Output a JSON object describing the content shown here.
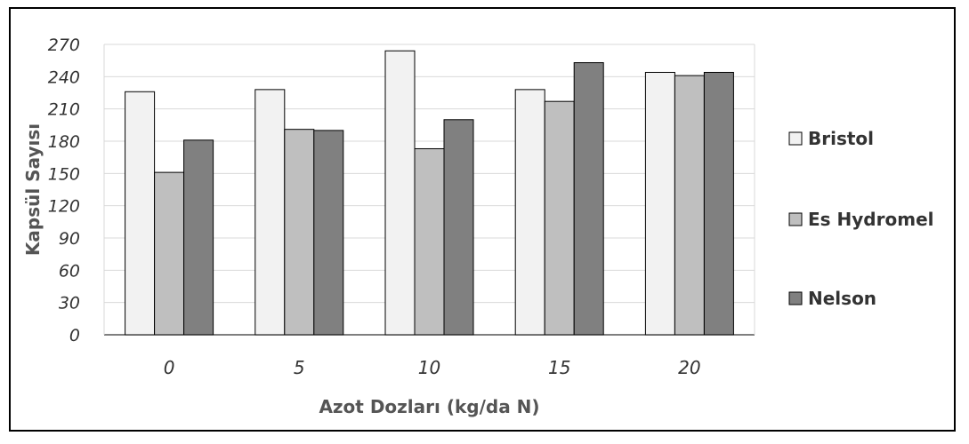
{
  "chart_data": {
    "type": "bar",
    "categories": [
      "0",
      "5",
      "10",
      "15",
      "20"
    ],
    "series": [
      {
        "name": "Bristol",
        "values": [
          226,
          228,
          264,
          228,
          244
        ],
        "color": "#f2f2f2"
      },
      {
        "name": "Es Hydromel",
        "values": [
          151,
          191,
          173,
          217,
          241
        ],
        "color": "#bfbfbf"
      },
      {
        "name": "Nelson",
        "values": [
          181,
          190,
          200,
          253,
          244
        ],
        "color": "#808080"
      }
    ],
    "xlabel": "Azot Dozları (kg/da N)",
    "ylabel": "Kapsül Sayısı",
    "ylim": [
      0,
      270
    ],
    "yticks": [
      0,
      30,
      60,
      90,
      120,
      150,
      180,
      210,
      240,
      270
    ],
    "grid": true,
    "legend_position": "right"
  }
}
